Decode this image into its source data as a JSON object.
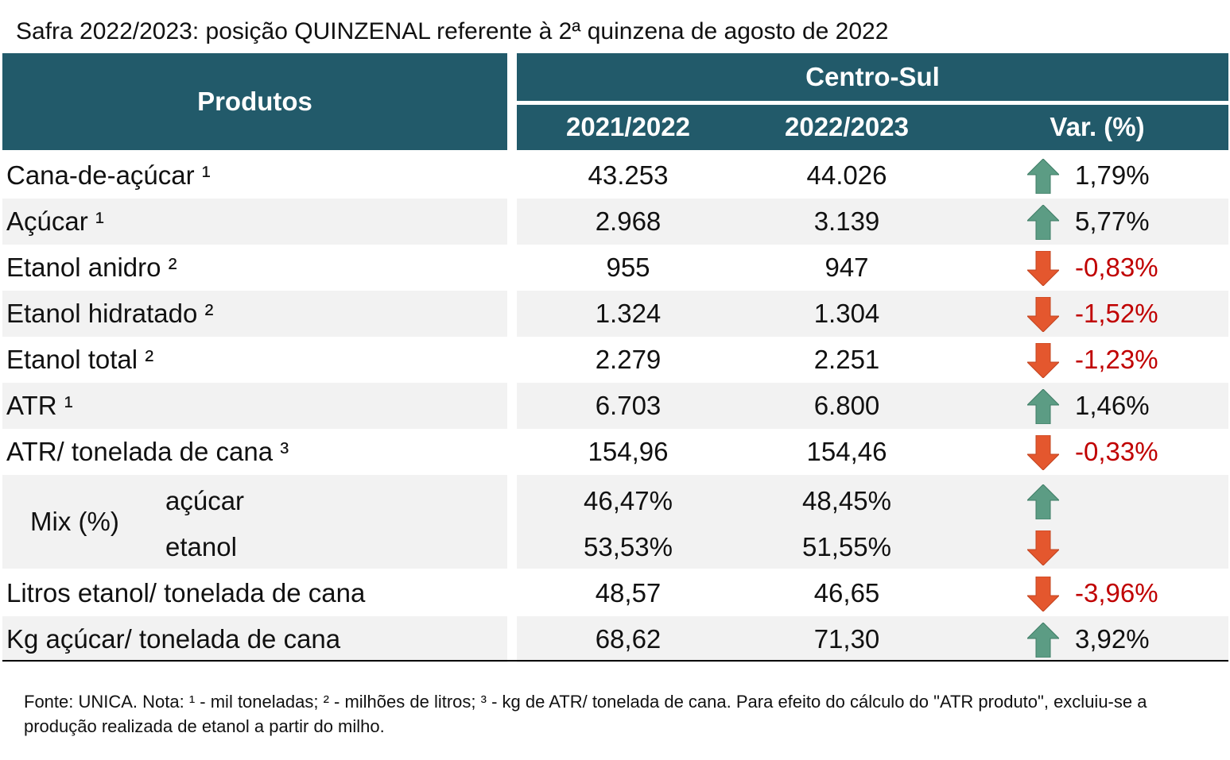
{
  "title": "Safra 2022/2023: posição QUINZENAL referente à 2ª quinzena de agosto de 2022",
  "table": {
    "header": {
      "products": "Produtos",
      "region": "Centro-Sul",
      "columns": [
        "2021/2022",
        "2022/2023",
        "Var. (%)"
      ]
    },
    "rows": [
      [
        "Cana-de-açúcar ¹",
        "43.253",
        "44.026",
        "1,79%"
      ],
      [
        "Açúcar ¹",
        "2.968",
        "3.139",
        "5,77%"
      ],
      [
        "Etanol anidro ²",
        "955",
        "947",
        "-0,83%"
      ],
      [
        "Etanol hidratado ²",
        "1.324",
        "1.304",
        "-1,52%"
      ],
      [
        "Etanol total ²",
        "2.279",
        "2.251",
        "-1,23%"
      ],
      [
        "ATR ¹",
        "6.703",
        "6.800",
        "1,46%"
      ],
      [
        "ATR/ tonelada de cana ³",
        "154,96",
        "154,46",
        "-0,33%"
      ]
    ],
    "mix": {
      "label": "Mix (%)",
      "rows": [
        [
          "açúcar",
          "46,47%",
          "48,45%"
        ],
        [
          "etanol",
          "53,53%",
          "51,55%"
        ]
      ]
    },
    "rows_after_mix": [
      [
        "Litros etanol/ tonelada de cana",
        "48,57",
        "46,65",
        "-3,96%"
      ],
      [
        "Kg açúcar/ tonelada de cana",
        "68,62",
        "71,30",
        "3,92%"
      ]
    ]
  },
  "footnote": "Fonte: UNICA. Nota: ¹ - mil toneladas; ² - milhões de litros; ³ - kg de ATR/ tonelada de cana. Para efeito do cálculo do \"ATR produto\", excluiu-se a produção realizada de etanol a partir do milho."
}
